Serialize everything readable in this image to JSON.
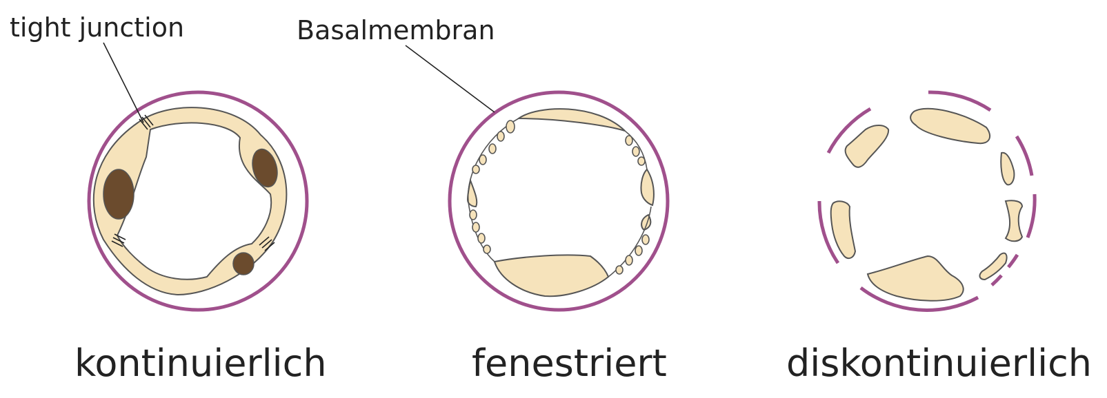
{
  "labels": {
    "tight_junction": "tight junction",
    "basalmembran": "Basalmembran",
    "types": {
      "kontinuierlich": "kontinuierlich",
      "fenestriert": "fenestriert",
      "diskontinuierlich": "diskontinuierlich"
    }
  },
  "colors": {
    "basal_membrane": "#a0508c",
    "endothelium_fill": "#f6e3bb",
    "nucleus": "#6b4b2d",
    "outline": "#555555"
  }
}
